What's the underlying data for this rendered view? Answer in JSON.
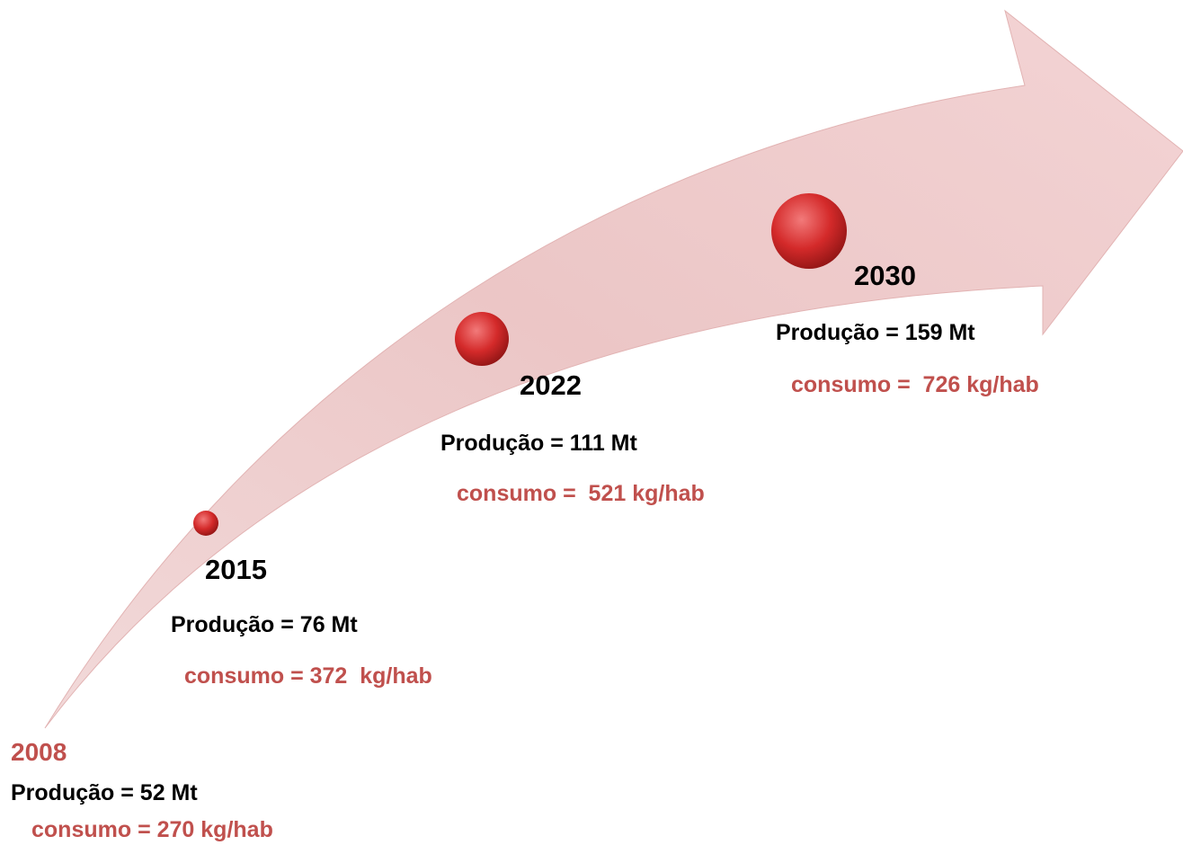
{
  "milestones": [
    {
      "year": "2008",
      "production": "Produção = 52 Mt",
      "consumption": "consumo = 270 kg/hab"
    },
    {
      "year": "2015",
      "production": "Produção = 76 Mt",
      "consumption": "consumo = 372  kg/hab"
    },
    {
      "year": "2022",
      "production": "Produção = 111 Mt",
      "consumption": "consumo =  521 kg/hab"
    },
    {
      "year": "2030",
      "production": "Produção = 159 Mt",
      "consumption": "consumo =  726 kg/hab"
    }
  ]
}
